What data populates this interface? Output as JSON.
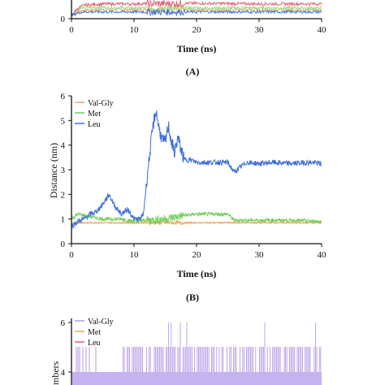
{
  "panels": [
    {
      "label": "(A)",
      "chart_data": {
        "type": "line",
        "xlabel": "Time (ns)",
        "ylabel": "",
        "xlim": [
          0,
          40
        ],
        "xticks": [
          "0",
          "10",
          "20",
          "30",
          "40"
        ],
        "yticks_visible": [
          "0"
        ],
        "grid": false,
        "series": [
          {
            "name": "Val-Gly",
            "color": "#e8b26e",
            "x": [
              0,
              1,
              2,
              5,
              10,
              20,
              30,
              40
            ],
            "y": [
              0.3,
              0.6,
              0.75,
              0.8,
              0.8,
              0.8,
              0.8,
              0.8
            ]
          },
          {
            "name": "Met",
            "color": "#9be07a",
            "x": [
              0,
              1,
              2,
              4,
              10,
              20,
              30,
              40
            ],
            "y": [
              0.3,
              0.8,
              1.0,
              1.0,
              0.95,
              0.95,
              0.95,
              0.95
            ]
          },
          {
            "name": "Leu",
            "color": "#e55f7a",
            "x": [
              0,
              1,
              2,
              5,
              10,
              20,
              30,
              40
            ],
            "y": [
              0.3,
              0.9,
              1.2,
              1.3,
              1.3,
              1.35,
              1.3,
              1.3
            ]
          },
          {
            "name": "",
            "color": "#4a77d4",
            "x": [
              0,
              1,
              2,
              10,
              20,
              30,
              40
            ],
            "y": [
              0.3,
              0.5,
              0.6,
              0.6,
              0.6,
              0.6,
              0.6
            ]
          }
        ]
      }
    },
    {
      "label": "(B)",
      "chart_data": {
        "type": "line",
        "title": "",
        "xlabel": "Time (ns)",
        "ylabel": "Distance (nm)",
        "xlim": [
          0,
          40
        ],
        "ylim": [
          0,
          6
        ],
        "xticks": [
          "0",
          "10",
          "20",
          "30",
          "40"
        ],
        "yticks": [
          "0",
          "1",
          "2",
          "3",
          "4",
          "5",
          "6"
        ],
        "legend": "top-left",
        "grid": false,
        "series": [
          {
            "name": "Val-Gly",
            "color": "#f0a860",
            "x": [
              0,
              1,
              5,
              10,
              15,
              20,
              25,
              30,
              35,
              40
            ],
            "y": [
              0.8,
              0.85,
              0.85,
              0.85,
              0.85,
              0.85,
              0.85,
              0.85,
              0.85,
              0.85
            ]
          },
          {
            "name": "Met",
            "color": "#6fce5a",
            "x": [
              0,
              1,
              3,
              5,
              8,
              10,
              12,
              15,
              18,
              20,
              25,
              26,
              30,
              35,
              40
            ],
            "y": [
              1.0,
              1.2,
              1.1,
              1.0,
              1.0,
              0.9,
              0.95,
              1.0,
              1.15,
              1.2,
              1.2,
              0.95,
              0.95,
              0.95,
              0.9
            ]
          },
          {
            "name": "Leu",
            "color": "#3f6fd8",
            "x": [
              0,
              1,
              2,
              3,
              4,
              5,
              6,
              7,
              8,
              9,
              10,
              11,
              11.5,
              12,
              12.5,
              13,
              13.5,
              14,
              14.5,
              15,
              15.5,
              16,
              16.5,
              17,
              18,
              19,
              20,
              22,
              25,
              26,
              28,
              30,
              32,
              35,
              38,
              40
            ],
            "y": [
              0.7,
              0.9,
              1.0,
              1.2,
              1.3,
              1.6,
              2.0,
              1.5,
              1.2,
              1.4,
              1.0,
              1.0,
              1.2,
              2.5,
              3.6,
              4.7,
              5.4,
              4.7,
              4.2,
              4.1,
              4.8,
              4.1,
              3.7,
              4.3,
              3.4,
              3.4,
              3.3,
              3.3,
              3.3,
              2.9,
              3.3,
              3.25,
              3.3,
              3.25,
              3.3,
              3.25
            ]
          }
        ]
      }
    },
    {
      "label": "",
      "chart_data": {
        "type": "line",
        "ylabel": "Numbers",
        "ylabel_visible": "mbers",
        "yticks_visible": [
          "4",
          "6"
        ],
        "legend": "top-left",
        "series": [
          {
            "name": "Val-Gly",
            "color": "#b49ae8"
          },
          {
            "name": "Met",
            "color": "#f0a860"
          },
          {
            "name": "Leu",
            "color": "#e55f7a"
          }
        ]
      }
    }
  ]
}
